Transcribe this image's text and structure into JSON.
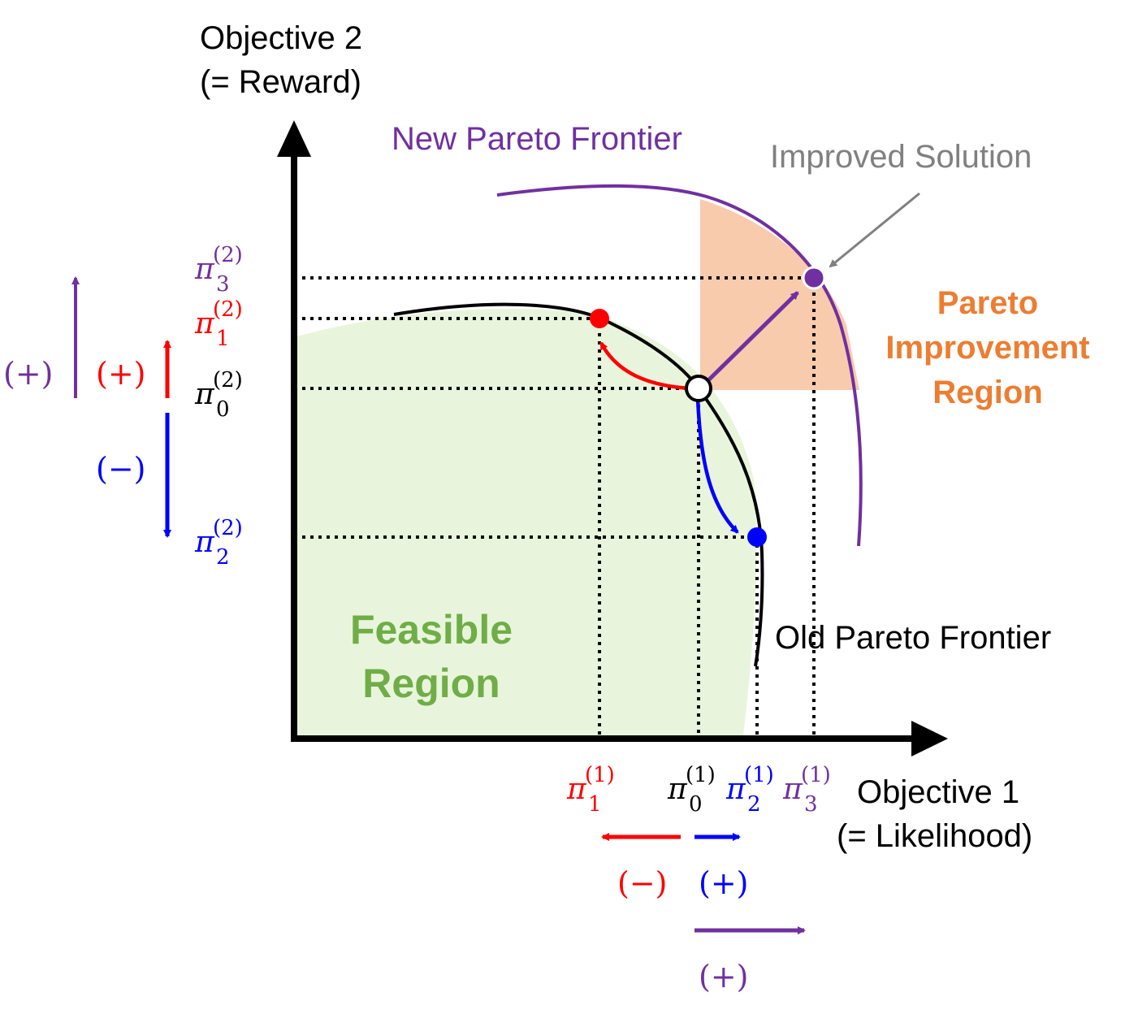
{
  "axes": {
    "y_title_line1": "Objective 2",
    "y_title_line2": "(= Reward)",
    "x_title_line1": "Objective 1",
    "x_title_line2": "(= Likelihood)"
  },
  "labels": {
    "new_frontier": "New Pareto Frontier",
    "old_frontier": "Old Pareto Frontier",
    "improved_solution": "Improved Solution",
    "improvement_region_line1": "Pareto",
    "improvement_region_line2": "Improvement",
    "improvement_region_line3": "Region",
    "feasible_line1": "Feasible",
    "feasible_line2": "Region"
  },
  "policy_symbol": "π",
  "y_ticks": [
    {
      "sub": "3",
      "sup": "(2)",
      "color": "#7030a0"
    },
    {
      "sub": "1",
      "sup": "(2)",
      "color": "#ff0000"
    },
    {
      "sub": "0",
      "sup": "(2)",
      "color": "#000000"
    },
    {
      "sub": "2",
      "sup": "(2)",
      "color": "#0000ff"
    }
  ],
  "x_ticks": [
    {
      "sub": "1",
      "sup": "(1)",
      "color": "#ff0000"
    },
    {
      "sub": "0",
      "sup": "(1)",
      "color": "#000000"
    },
    {
      "sub": "2",
      "sup": "(1)",
      "color": "#0000ff"
    },
    {
      "sub": "3",
      "sup": "(1)",
      "color": "#7030a0"
    }
  ],
  "signs": {
    "y_purple": "(+)",
    "y_red": "(+)",
    "y_blue": "(−)",
    "x_red": "(−)",
    "x_blue": "(+)",
    "x_purple": "(+)"
  },
  "colors": {
    "red": "#ff0000",
    "blue": "#0000ff",
    "purple": "#7030a0",
    "orange": "#ed7d31",
    "green": "#70ad47",
    "gray": "#808080",
    "feasible_fill": "#e8f5dc",
    "improvement_fill": "#f8cbad"
  }
}
